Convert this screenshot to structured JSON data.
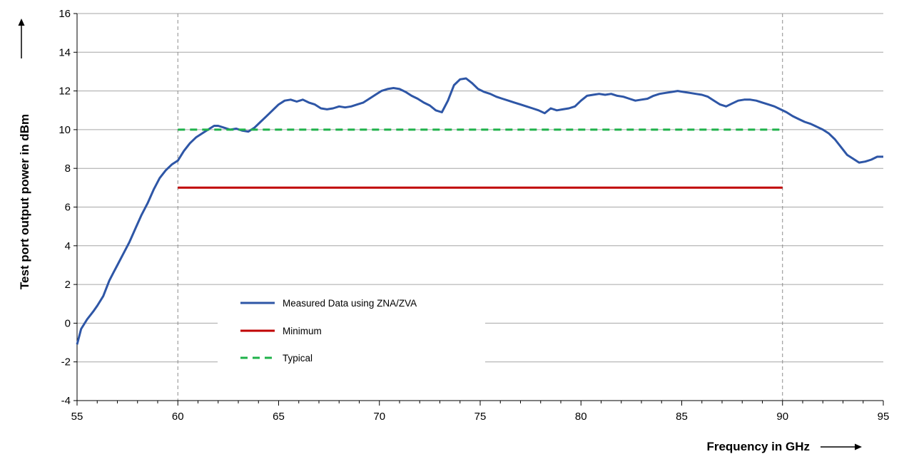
{
  "chart_data": {
    "type": "line",
    "title": "",
    "xlabel": "Frequency in GHz",
    "ylabel": "Test port output power in dBm",
    "xlim": [
      55,
      95
    ],
    "ylim": [
      -4,
      16
    ],
    "xticks": [
      55,
      60,
      65,
      70,
      75,
      80,
      85,
      90,
      95
    ],
    "yticks": [
      -4,
      -2,
      0,
      2,
      4,
      6,
      8,
      10,
      12,
      14,
      16
    ],
    "grid": "horizontal",
    "reference_lines_x": [
      60,
      90
    ],
    "legend_position": "lower-left inside",
    "colors": {
      "measured": "#2e56a6",
      "minimum": "#c00000",
      "typical": "#1fb24a",
      "grid": "#a6a6a6",
      "reference": "#8c8c8c"
    },
    "series": [
      {
        "name": "Measured Data using ZNA/ZVA",
        "style": "solid",
        "x": [
          55,
          55.2,
          55.5,
          55.8,
          56,
          56.3,
          56.6,
          56.8,
          57,
          57.3,
          57.6,
          57.9,
          58.2,
          58.5,
          58.8,
          59.1,
          59.4,
          59.7,
          60,
          60.3,
          60.6,
          60.9,
          61.2,
          61.5,
          61.8,
          62,
          62.3,
          62.6,
          62.9,
          63.2,
          63.5,
          63.8,
          64.1,
          64.4,
          64.7,
          65,
          65.3,
          65.6,
          65.9,
          66.2,
          66.5,
          66.8,
          67.1,
          67.4,
          67.7,
          68,
          68.3,
          68.6,
          68.9,
          69.2,
          69.5,
          69.8,
          70.1,
          70.4,
          70.7,
          71,
          71.3,
          71.6,
          71.9,
          72.2,
          72.5,
          72.8,
          73.1,
          73.4,
          73.7,
          74,
          74.3,
          74.6,
          74.9,
          75.2,
          75.5,
          75.8,
          76.1,
          76.4,
          76.7,
          77,
          77.3,
          77.6,
          77.9,
          78.2,
          78.5,
          78.8,
          79.1,
          79.4,
          79.7,
          80,
          80.3,
          80.6,
          80.9,
          81.2,
          81.5,
          81.8,
          82.1,
          82.4,
          82.7,
          83,
          83.3,
          83.6,
          83.9,
          84.2,
          84.5,
          84.8,
          85.1,
          85.4,
          85.7,
          86,
          86.3,
          86.6,
          86.9,
          87.2,
          87.5,
          87.8,
          88.1,
          88.4,
          88.7,
          89,
          89.3,
          89.6,
          89.9,
          90.2,
          90.5,
          90.8,
          91.1,
          91.4,
          91.7,
          92,
          92.3,
          92.6,
          92.9,
          93.2,
          93.5,
          93.8,
          94.1,
          94.4,
          94.7,
          95
        ],
        "y": [
          -1.1,
          -0.3,
          0.2,
          0.6,
          0.9,
          1.4,
          2.2,
          2.6,
          3.0,
          3.6,
          4.2,
          4.9,
          5.6,
          6.2,
          6.9,
          7.5,
          7.9,
          8.2,
          8.4,
          8.9,
          9.3,
          9.6,
          9.8,
          10.0,
          10.2,
          10.2,
          10.1,
          10.0,
          10.05,
          9.95,
          9.9,
          10.1,
          10.4,
          10.7,
          11.0,
          11.3,
          11.5,
          11.55,
          11.45,
          11.55,
          11.4,
          11.3,
          11.1,
          11.05,
          11.1,
          11.2,
          11.15,
          11.2,
          11.3,
          11.4,
          11.6,
          11.8,
          12.0,
          12.1,
          12.15,
          12.1,
          11.95,
          11.75,
          11.6,
          11.4,
          11.25,
          11.0,
          10.9,
          11.5,
          12.3,
          12.6,
          12.65,
          12.4,
          12.1,
          11.95,
          11.85,
          11.7,
          11.6,
          11.5,
          11.4,
          11.3,
          11.2,
          11.1,
          11.0,
          10.85,
          11.1,
          11.0,
          11.05,
          11.1,
          11.2,
          11.5,
          11.75,
          11.8,
          11.85,
          11.8,
          11.85,
          11.75,
          11.7,
          11.6,
          11.5,
          11.55,
          11.6,
          11.75,
          11.85,
          11.9,
          11.95,
          12.0,
          11.95,
          11.9,
          11.85,
          11.8,
          11.7,
          11.5,
          11.3,
          11.2,
          11.35,
          11.5,
          11.55,
          11.55,
          11.5,
          11.4,
          11.3,
          11.2,
          11.05,
          10.9,
          10.7,
          10.55,
          10.4,
          10.3,
          10.15,
          10.0,
          9.8,
          9.5,
          9.1,
          8.7,
          8.5,
          8.3,
          8.35,
          8.45,
          8.6,
          8.6
        ]
      },
      {
        "name": "Minimum",
        "style": "solid",
        "x": [
          60,
          90
        ],
        "y": [
          7,
          7
        ]
      },
      {
        "name": "Typical",
        "style": "dashed",
        "x": [
          60,
          90
        ],
        "y": [
          10,
          10
        ]
      }
    ]
  }
}
